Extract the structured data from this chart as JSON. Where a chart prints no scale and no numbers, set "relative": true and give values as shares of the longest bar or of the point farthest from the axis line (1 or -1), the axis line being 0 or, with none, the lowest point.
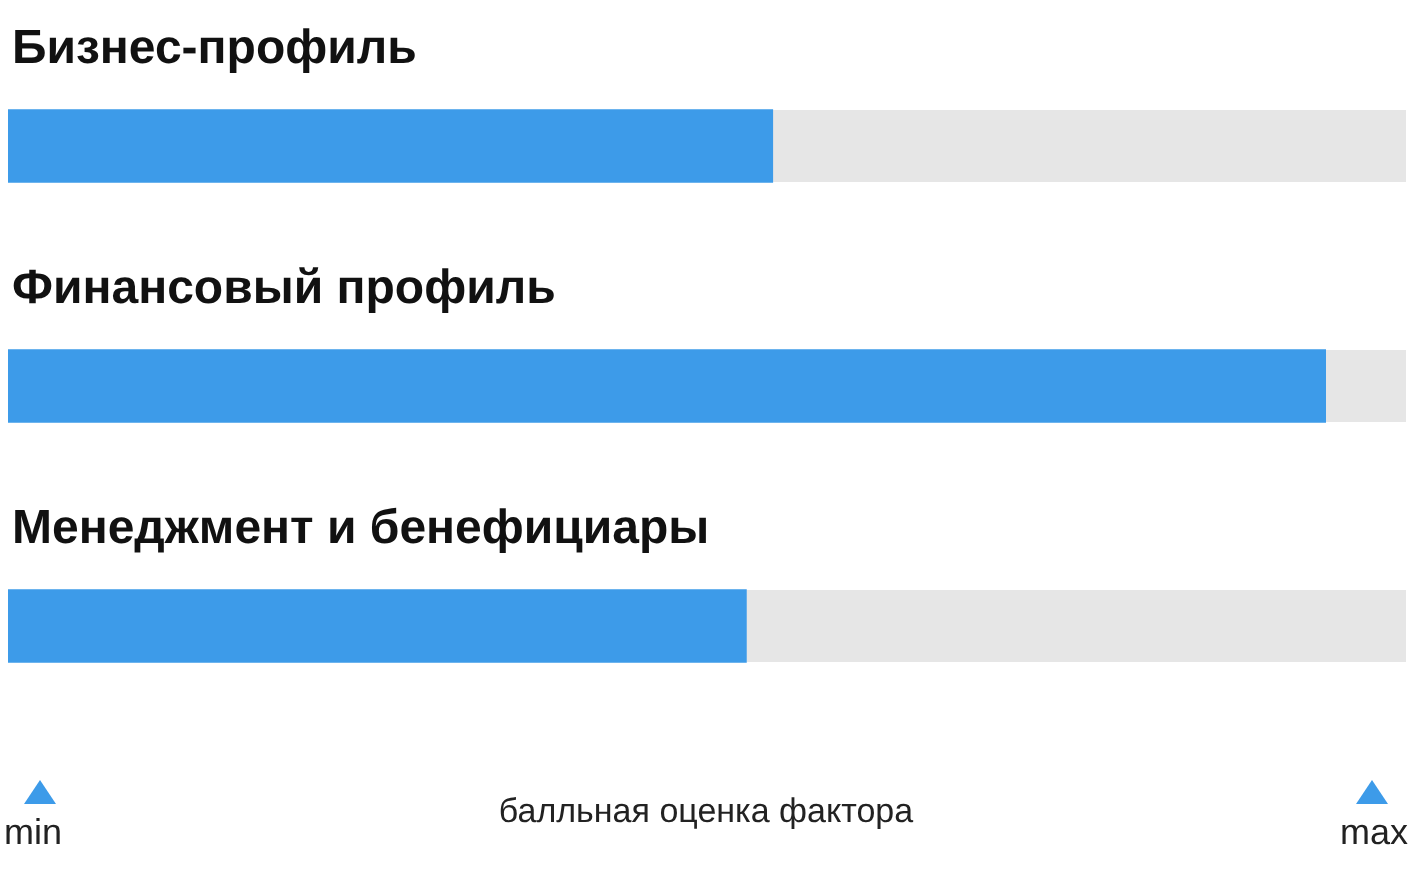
{
  "chart_data": {
    "type": "bar",
    "orientation": "horizontal",
    "relative": true,
    "categories": [
      "Бизнес-профиль",
      "Финансовый профиль",
      "Менеджмент и бенефициары"
    ],
    "values": [
      0.58,
      1,
      0.56
    ],
    "color": "#3d9be9",
    "xlabel": "балльная оценка фактора",
    "annotations": [
      "min",
      "max"
    ],
    "legend": false
  }
}
